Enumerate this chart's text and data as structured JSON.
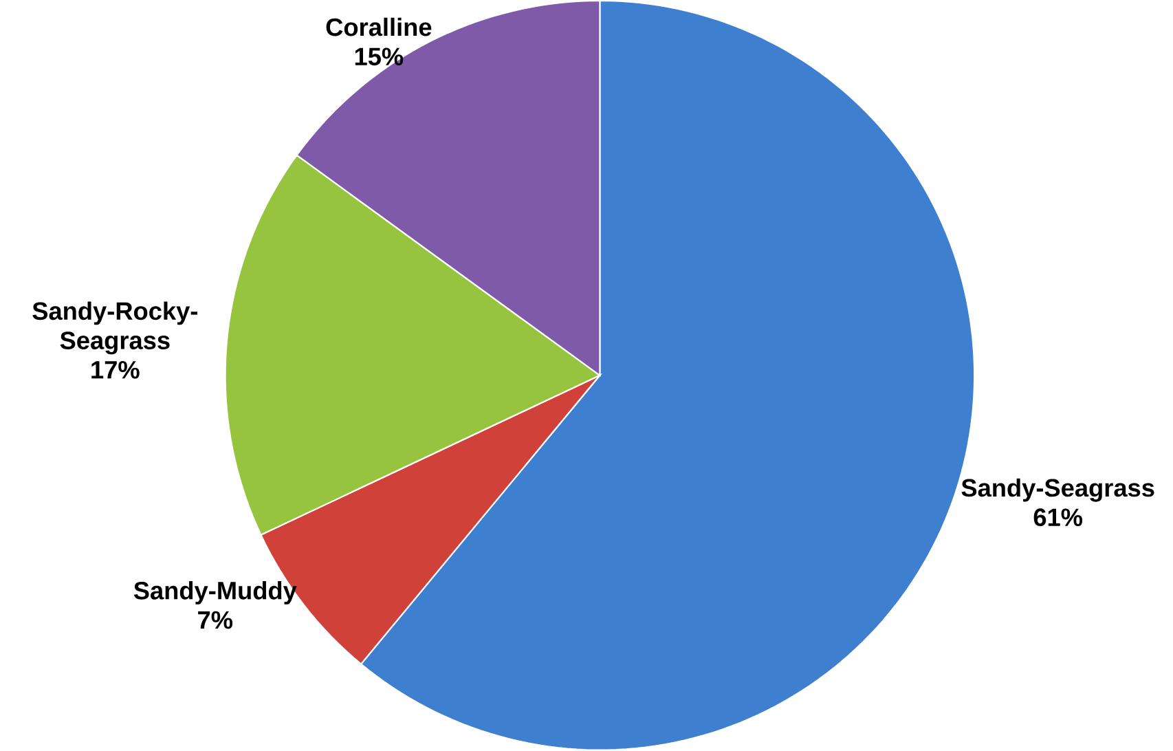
{
  "chart_data": {
    "type": "pie",
    "categories": [
      "Sandy-Seagrass",
      "Sandy-Muddy",
      "Sandy-Rocky-Seagrass",
      "Coralline"
    ],
    "values": [
      61,
      7,
      17,
      15
    ],
    "value_labels": [
      "61%",
      "7%",
      "17%",
      "15%"
    ],
    "colors": [
      "#3f7fcf",
      "#d0413a",
      "#97c43f",
      "#7e5aa8"
    ]
  }
}
